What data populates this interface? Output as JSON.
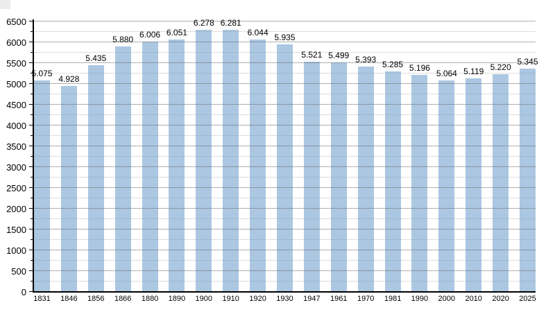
{
  "chart_data": {
    "type": "bar",
    "title": "",
    "xlabel": "",
    "ylabel": "",
    "categories": [
      "1831",
      "1846",
      "1856",
      "1866",
      "1880",
      "1890",
      "1900",
      "1910",
      "1920",
      "1930",
      "1947",
      "1961",
      "1970",
      "1981",
      "1990",
      "2000",
      "2010",
      "2020",
      "2025"
    ],
    "values": [
      5075,
      4928,
      5435,
      5880,
      6006,
      6051,
      6278,
      6281,
      6044,
      5935,
      5521,
      5499,
      5393,
      5285,
      5196,
      5064,
      5119,
      5220,
      5345
    ],
    "value_labels": [
      "5.075",
      "4.928",
      "5.435",
      "5.880",
      "6.006",
      "6.051",
      "6.278",
      "6.281",
      "6.044",
      "5.935",
      "5.521",
      "5.499",
      "5.393",
      "5.285",
      "5.196",
      "5.064",
      "5.119",
      "5.220",
      "5.345"
    ],
    "ylim": [
      0,
      6500
    ],
    "y_major_step": 500,
    "y_minor_step": 250,
    "y_tick_labels": [
      "0",
      "500",
      "1000",
      "1500",
      "2000",
      "2500",
      "3000",
      "3500",
      "4000",
      "4500",
      "5000",
      "5500",
      "6000",
      "6500"
    ],
    "grid": "on",
    "legend": "none",
    "bar_color": "#abc7e2",
    "grid_major_color": "#a6a6a6",
    "grid_minor_color": "#d9d9d9",
    "axis_color": "#000000",
    "background_color": "#ffffff"
  }
}
